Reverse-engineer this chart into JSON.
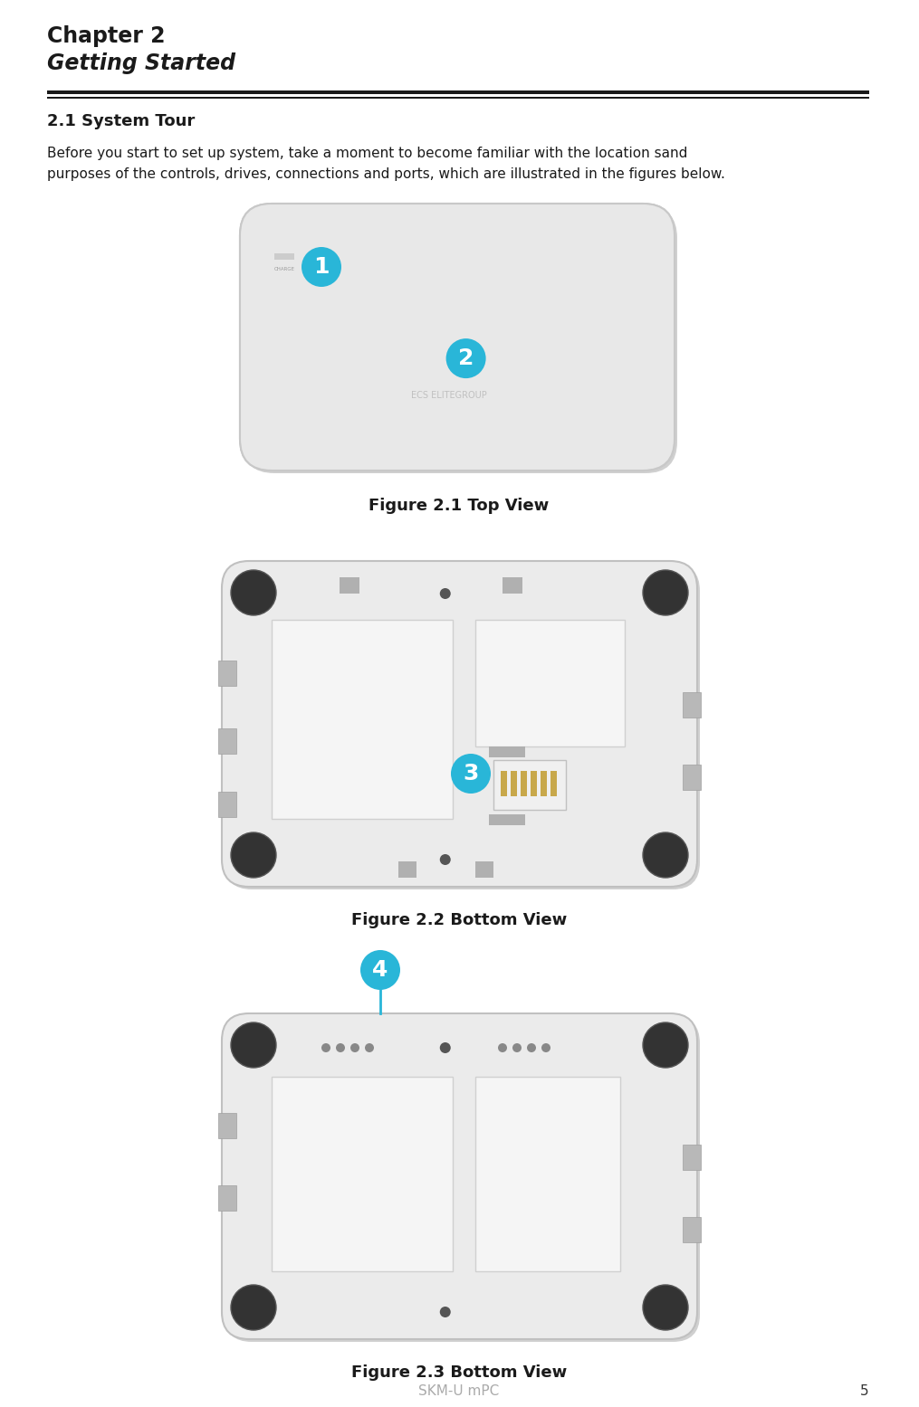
{
  "bg_color": "#ffffff",
  "chapter_label": "Chapter 2",
  "chapter_subtitle": "Getting Started",
  "section_title": "2.1 System Tour",
  "body_text_line1": "Before you start to set up system, take a moment to become familiar with the location sand",
  "body_text_line2": "purposes of the controls, drives, connections and ports, which are illustrated in the figures below.",
  "fig1_caption": "Figure 2.1 Top View",
  "fig2_caption": "Figure 2.2 Bottom View",
  "fig3_caption": "Figure 2.3 Bottom View",
  "footer_text": "SKM-U mPC",
  "footer_page": "5",
  "badge_color": "#29b6d8",
  "badge_text_color": "#ffffff",
  "device1_face": "#e8e8e8",
  "device1_border": "#c8c8c8",
  "device23_face": "#ebebeb",
  "device23_border": "#c0c0c0",
  "screw_color": "#333333",
  "slot_color": "#b8b8b8",
  "inner_face": "#f5f5f5",
  "inner_border": "#d0d0d0",
  "connector_gold": "#c8a84b",
  "charge_label": "CHARGE",
  "ecs_label": "ECS ELITEGROUP"
}
